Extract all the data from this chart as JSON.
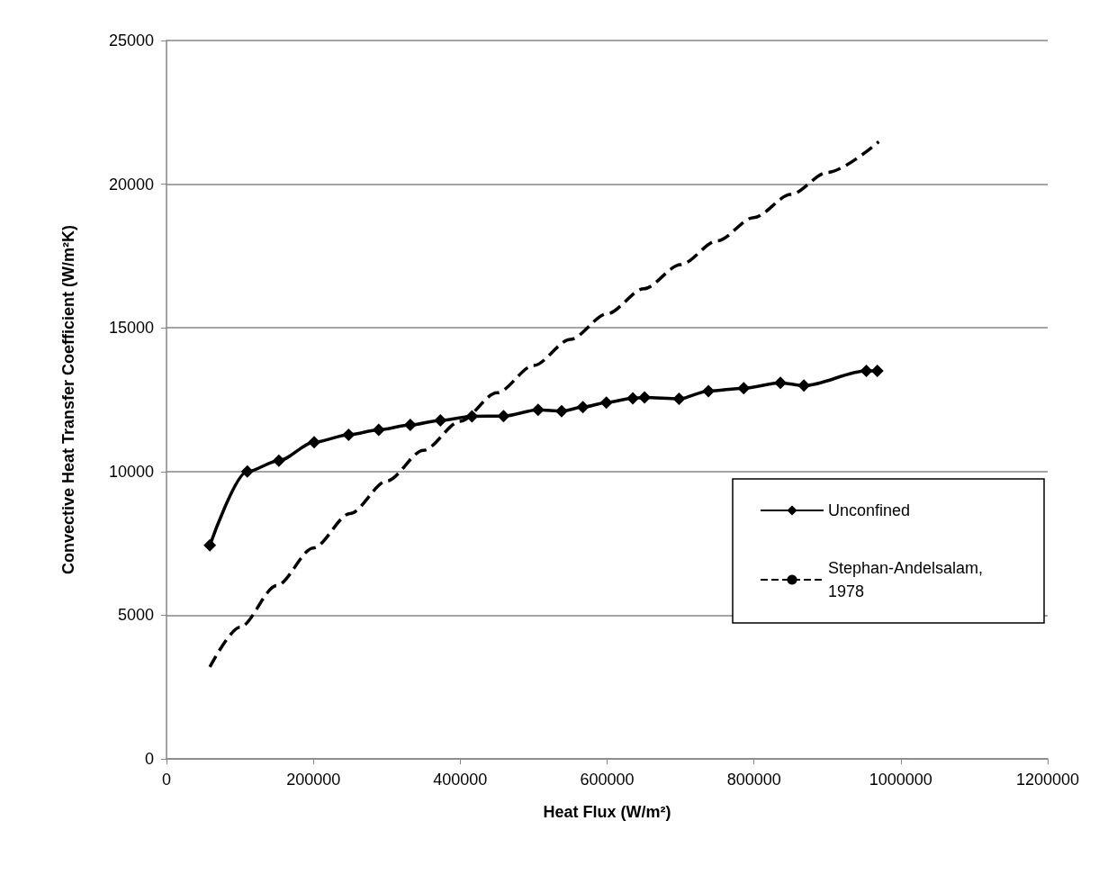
{
  "chart_data": {
    "type": "line",
    "xlabel": "Heat Flux (W/m²)",
    "ylabel": "Convective Heat Transfer Coefficient (W/m²K)",
    "xlim": [
      0,
      1200000
    ],
    "xticks": [
      0,
      200000,
      400000,
      600000,
      800000,
      1000000,
      1200000
    ],
    "ylim": [
      0,
      25000
    ],
    "yticks": [
      0,
      5000,
      10000,
      15000,
      20000,
      25000
    ],
    "grid": "y",
    "legend": "right",
    "series": [
      {
        "name": "Unconfined",
        "color": "#000000",
        "marker": "diamond",
        "line_style": "solid",
        "x": [
          59000,
          110000,
          153000,
          201000,
          248000,
          289000,
          332000,
          373000,
          416000,
          459000,
          506000,
          538000,
          567000,
          599000,
          635000,
          651000,
          698000,
          738000,
          786000,
          836000,
          868000,
          953000,
          968000
        ],
        "values": [
          7430,
          10000,
          10380,
          11020,
          11280,
          11450,
          11620,
          11780,
          11920,
          11930,
          12150,
          12100,
          12240,
          12400,
          12550,
          12580,
          12530,
          12800,
          12900,
          13090,
          12990,
          13500,
          13500
        ]
      },
      {
        "name": "Stephan-Andelsalam, 1978",
        "color": "#000000",
        "marker": "none",
        "line_style": "dashed",
        "x": [
          59000,
          100000,
          150000,
          200000,
          250000,
          300000,
          350000,
          400000,
          450000,
          500000,
          550000,
          600000,
          650000,
          700000,
          750000,
          800000,
          850000,
          900000,
          970000
        ],
        "values": [
          3200,
          4580,
          6030,
          7340,
          8540,
          9670,
          10740,
          11750,
          12740,
          13690,
          14600,
          15490,
          16360,
          17200,
          18030,
          18840,
          19640,
          20410,
          21480
        ]
      }
    ]
  }
}
